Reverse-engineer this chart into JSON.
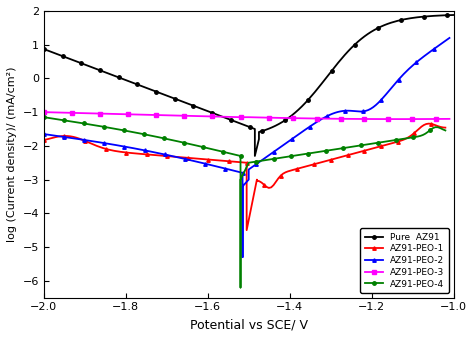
{
  "title": "",
  "xlabel": "Potential vs SCE/ V",
  "ylabel": "log (Current density)/ (mA/cm²)",
  "xlim": [
    -2.0,
    -1.0
  ],
  "ylim": [
    -6.5,
    2.0
  ],
  "yticks": [
    -6,
    -5,
    -4,
    -3,
    -2,
    -1,
    0,
    1,
    2
  ],
  "xticks": [
    -2.0,
    -1.8,
    -1.6,
    -1.4,
    -1.2,
    -1.0
  ],
  "background_color": "#ffffff",
  "legend_entries": [
    "Pure  AZ91",
    "AZ91-PEO-1",
    "AZ91-PEO-2",
    "AZ91-PEO-3",
    "AZ91-PEO-4"
  ],
  "colors": {
    "pure_az91": "#000000",
    "az91_peo1": "#ff0000",
    "az91_peo2": "#0000ff",
    "az91_peo3": "#ff00ff",
    "az91_peo4": "#008000"
  },
  "marker_size": 2.5,
  "line_width": 1.3
}
